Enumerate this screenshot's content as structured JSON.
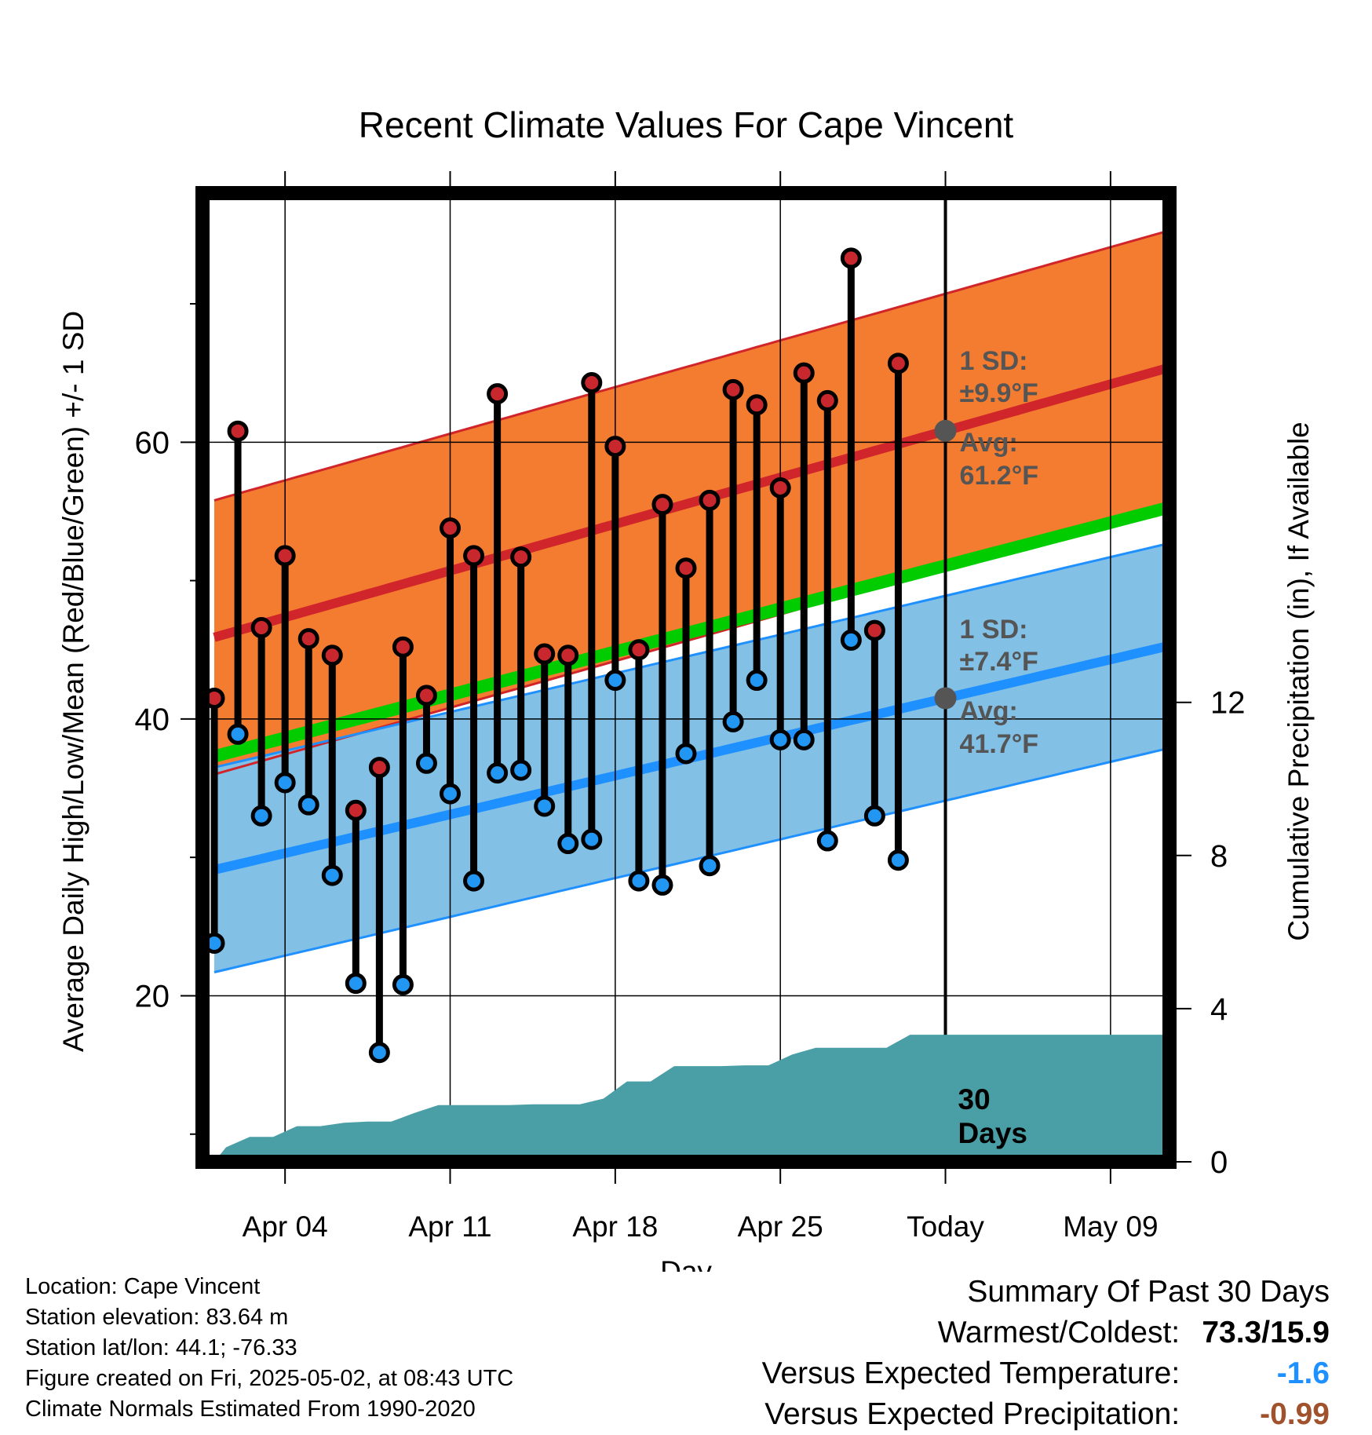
{
  "chart_data": {
    "type": "line",
    "title": "Recent Climate Values For Cape Vincent",
    "xlabel": "Day",
    "ylabel": "Average Daily High/Low/Mean (Red/Blue/Green) +/- 1 SD",
    "ylabel_right": "Cumulative Precipitation (in), If Available",
    "x_tick_labels": [
      "Apr 04",
      "Apr 11",
      "Apr 18",
      "Apr 25",
      "Today",
      "May 09"
    ],
    "x_tick_days": [
      3,
      10,
      17,
      24,
      31,
      38
    ],
    "xlim": [
      -0.5,
      40.5
    ],
    "y_ticks": [
      20,
      40,
      60
    ],
    "ylim": [
      8,
      78
    ],
    "y2_ticks": [
      0,
      4,
      8,
      12
    ],
    "y2lim": [
      0,
      25.3
    ],
    "grid": true,
    "today_day": 31,
    "normals": {
      "high_mean_start": 45.9,
      "high_mean_end": 65.4,
      "high_sd": 9.9,
      "low_mean_start": 29.1,
      "low_mean_end": 45.3,
      "low_sd": 7.4,
      "mean_start": 37.3,
      "mean_end": 55.3
    },
    "observations": {
      "days": [
        0,
        1,
        2,
        3,
        4,
        5,
        6,
        7,
        8,
        9,
        10,
        11,
        12,
        13,
        14,
        15,
        16,
        17,
        18,
        19,
        20,
        21,
        22,
        23,
        24,
        25,
        26,
        27,
        28,
        29
      ],
      "highs": [
        41.5,
        60.8,
        46.6,
        51.8,
        45.8,
        44.6,
        33.4,
        36.5,
        45.2,
        41.7,
        53.8,
        51.8,
        63.5,
        51.7,
        44.7,
        44.6,
        64.3,
        59.7,
        45.0,
        55.5,
        50.9,
        55.8,
        63.8,
        62.7,
        56.7,
        65.0,
        63.0,
        73.3,
        46.4,
        65.7
      ],
      "lows": [
        23.8,
        38.9,
        33.0,
        35.4,
        33.8,
        28.7,
        20.9,
        15.9,
        20.8,
        36.8,
        34.6,
        28.3,
        36.1,
        36.3,
        33.7,
        31.0,
        31.3,
        42.8,
        28.3,
        28.0,
        37.5,
        29.4,
        39.8,
        42.8,
        38.5,
        38.5,
        31.2,
        45.7,
        33.0,
        29.8
      ]
    },
    "precip_days": [
      0,
      0.5,
      1.5,
      2.5,
      3.5,
      4.5,
      5.5,
      6.5,
      7.5,
      8.5,
      9.5,
      10.5,
      11.5,
      12.5,
      13.5,
      14.5,
      15.5,
      16.5,
      17.5,
      18.5,
      19.5,
      20.5,
      21.5,
      22.5,
      23.5,
      24.5,
      25.5,
      26.5,
      27.5,
      28.5,
      29.5,
      30.5,
      40.5
    ],
    "precip_cum": [
      0,
      0.38,
      0.65,
      0.65,
      0.93,
      0.93,
      1.02,
      1.05,
      1.05,
      1.28,
      1.48,
      1.48,
      1.48,
      1.48,
      1.5,
      1.5,
      1.5,
      1.65,
      2.1,
      2.1,
      2.5,
      2.5,
      2.5,
      2.52,
      2.52,
      2.8,
      2.98,
      2.98,
      2.98,
      2.98,
      3.32,
      3.32,
      3.32
    ],
    "annotations": {
      "high_sd": "1 SD:",
      "high_sd_val": "±9.9°F",
      "high_avg": "Avg:",
      "high_avg_val": "61.2°F",
      "low_sd": "1 SD:",
      "low_sd_val": "±7.4°F",
      "low_avg": "Avg:",
      "low_avg_val": "41.7°F",
      "window_num": "30",
      "window_unit": "Days"
    },
    "colors": {
      "high_band": "#f47c30",
      "high_line": "#d0252a",
      "low_band": "#82c0e6",
      "low_line": "#1e90ff",
      "mean_line": "#00cc00",
      "precip": "#4a9ea6",
      "high_marker": "#c8282d",
      "low_marker": "#2196f3",
      "annotation": "#555555"
    }
  },
  "footer": {
    "location": "Location: Cape Vincent",
    "elevation": "Station elevation: 83.64 m",
    "latlon": "Station lat/lon: 44.1; -76.33",
    "created": "Figure created on Fri, 2025-05-02, at 08:43 UTC",
    "normals": "Climate Normals Estimated From 1990-2020"
  },
  "summary": {
    "title": "Summary Of Past 30 Days",
    "warm_label": "Warmest/Coldest:",
    "warm_value": "73.3/15.9",
    "temp_label": "Versus Expected Temperature:",
    "temp_value": "-1.6",
    "temp_color": "#1e90ff",
    "precip_label": "Versus Expected Precipitation:",
    "precip_value": "-0.99",
    "precip_color": "#a0522d"
  }
}
